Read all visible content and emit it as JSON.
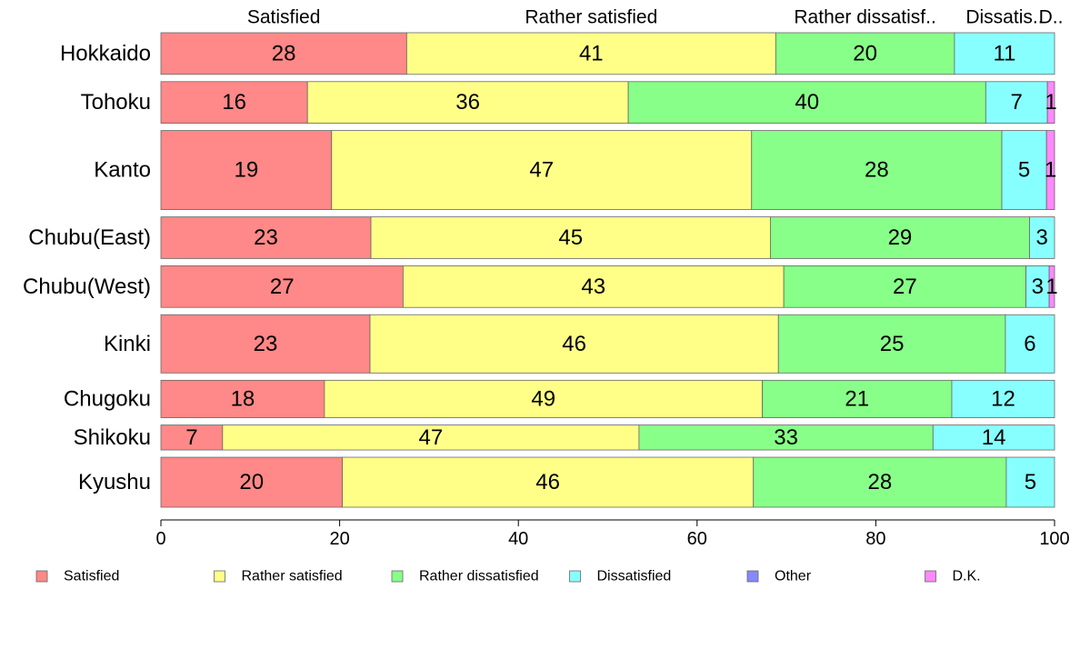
{
  "chart_data": {
    "type": "bar",
    "orientation": "horizontal",
    "stacked": true,
    "title": "",
    "xlabel": "",
    "ylabel": "",
    "xlim": [
      0,
      100
    ],
    "xticks": [
      0,
      20,
      40,
      60,
      80,
      100
    ],
    "grid": false,
    "legend_position": "bottom",
    "categories": [
      "Hokkaido",
      "Tohoku",
      "Kanto",
      "Chubu(East)",
      "Chubu(West)",
      "Kinki",
      "Chugoku",
      "Shikoku",
      "Kyushu"
    ],
    "category_widths": [
      1.0,
      1.0,
      1.9,
      1.0,
      1.0,
      1.4,
      0.9,
      0.6,
      1.2
    ],
    "series": [
      {
        "name": "Satisfied",
        "color": "#ff8888",
        "values": [
          27.5,
          16.4,
          19.1,
          23.5,
          27.1,
          23.4,
          18.3,
          6.9,
          20.3
        ]
      },
      {
        "name": "Rather satisfied",
        "color": "#ffff88",
        "values": [
          41.3,
          35.9,
          47.0,
          44.7,
          42.6,
          45.7,
          49.0,
          46.6,
          46.0
        ]
      },
      {
        "name": "Rather dissatisfied",
        "color": "#88ff88",
        "values": [
          20.0,
          40.0,
          28.0,
          29.0,
          27.1,
          25.4,
          21.2,
          32.9,
          28.3
        ]
      },
      {
        "name": "Dissatisfied",
        "color": "#88ffff",
        "values": [
          11.2,
          6.9,
          5.0,
          2.8,
          2.6,
          5.5,
          11.5,
          13.6,
          5.4
        ]
      },
      {
        "name": "Other",
        "color": "#8888ff",
        "values": [
          0,
          0,
          0,
          0,
          0,
          0,
          0,
          0,
          0
        ]
      },
      {
        "name": "D.K.",
        "color": "#ff88ff",
        "values": [
          0,
          0.8,
          0.9,
          0,
          0.6,
          0,
          0,
          0,
          0
        ]
      }
    ],
    "data_labels": [
      [
        "28",
        "41",
        "20",
        "11",
        "",
        ""
      ],
      [
        "16",
        "36",
        "40",
        "7",
        "",
        "1"
      ],
      [
        "19",
        "47",
        "28",
        "5",
        "",
        "1"
      ],
      [
        "23",
        "45",
        "29",
        "3",
        "",
        ""
      ],
      [
        "27",
        "43",
        "27",
        "3",
        "",
        "1"
      ],
      [
        "23",
        "46",
        "25",
        "6",
        "",
        ""
      ],
      [
        "18",
        "49",
        "21",
        "12",
        "",
        ""
      ],
      [
        "7",
        "47",
        "33",
        "14",
        "",
        ""
      ],
      [
        "20",
        "46",
        "28",
        "5",
        "",
        ""
      ]
    ],
    "top_labels": [
      "Satisfied",
      "Rather satisfied",
      "Rather dissatisf..",
      "Dissatis..",
      "",
      "D.."
    ]
  }
}
